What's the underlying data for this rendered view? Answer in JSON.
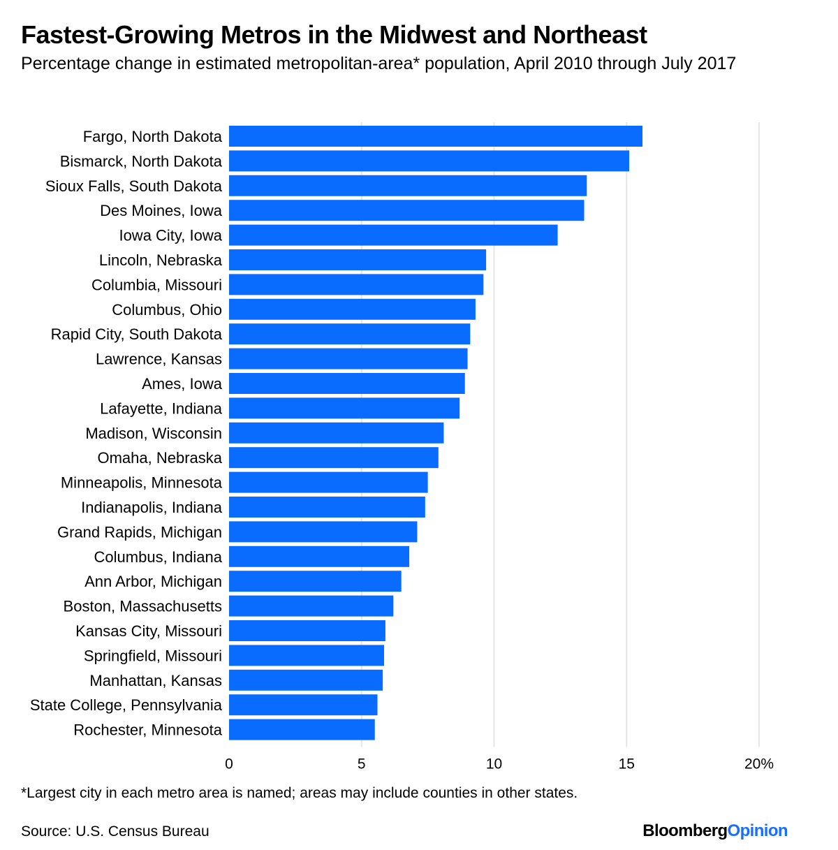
{
  "title": "Fastest-Growing Metros in the Midwest and Northeast",
  "subtitle": "Percentage change in estimated metropolitan-area* population, April 2010 through July 2017",
  "footnote": "*Largest city in each metro area is named; areas may include counties in other states.",
  "source": "Source: U.S. Census Bureau",
  "logo": {
    "brand": "Bloomberg",
    "section": "Opinion"
  },
  "colors": {
    "bar": "#0a6cff",
    "grid": "#e6e6e6",
    "text": "#000000",
    "logo_accent": "#1a6dff"
  },
  "chart_data": {
    "type": "bar",
    "orientation": "horizontal",
    "categories": [
      "Fargo, North Dakota",
      "Bismarck, North Dakota",
      "Sioux Falls, South Dakota",
      "Des Moines, Iowa",
      "Iowa City, Iowa",
      "Lincoln, Nebraska",
      "Columbia, Missouri",
      "Columbus, Ohio",
      "Rapid City, South Dakota",
      "Lawrence, Kansas",
      "Ames, Iowa",
      "Lafayette, Indiana",
      "Madison, Wisconsin",
      "Omaha, Nebraska",
      "Minneapolis, Minnesota",
      "Indianapolis, Indiana",
      "Grand Rapids, Michigan",
      "Columbus, Indiana",
      "Ann Arbor, Michigan",
      "Boston, Massachusetts",
      "Kansas City, Missouri",
      "Springfield, Missouri",
      "Manhattan, Kansas",
      "State College, Pennsylvania",
      "Rochester, Minnesota"
    ],
    "values": [
      15.6,
      15.1,
      13.5,
      13.4,
      12.4,
      9.7,
      9.6,
      9.3,
      9.1,
      9.0,
      8.9,
      8.7,
      8.1,
      7.9,
      7.5,
      7.4,
      7.1,
      6.8,
      6.5,
      6.2,
      5.9,
      5.85,
      5.8,
      5.6,
      5.5
    ],
    "xlim": [
      0,
      20
    ],
    "xticks": [
      0,
      5,
      10,
      15,
      20
    ],
    "xtick_labels": [
      "0",
      "5",
      "10",
      "15",
      "20%"
    ],
    "grid": true
  }
}
